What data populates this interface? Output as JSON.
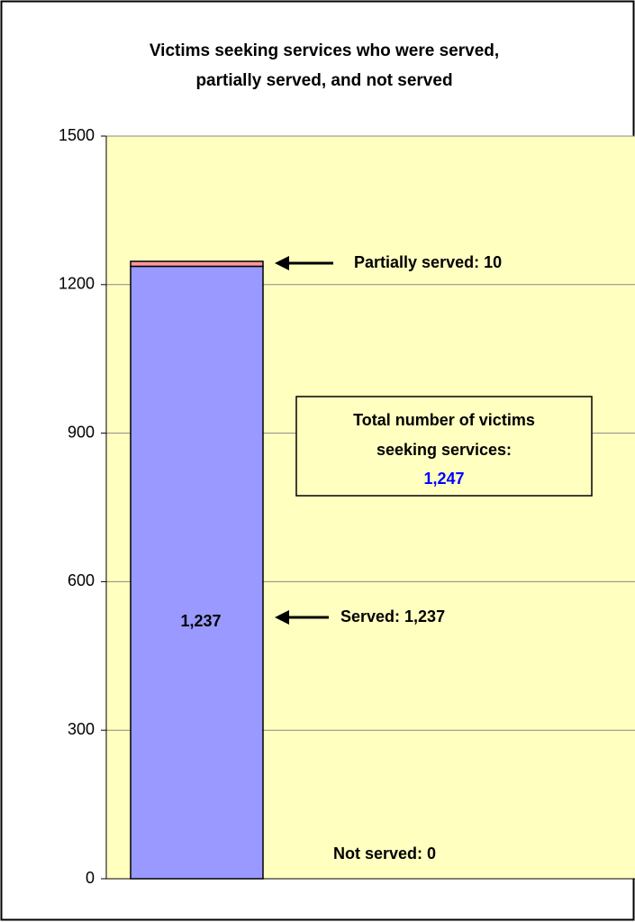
{
  "chart_data": {
    "type": "stacked_bar",
    "title": [
      "Victims seeking services who were served,",
      "partially served, and not served"
    ],
    "categories": [
      null
    ],
    "series": [
      {
        "color": "#9999ff",
        "values": [
          1237
        ],
        "value_labels": [
          "1,237"
        ]
      },
      {
        "color": "#ff9999",
        "values": [
          10
        ]
      },
      {
        "color": "#ffffcc",
        "values": [
          0
        ]
      }
    ],
    "ylim": [
      0,
      1500
    ],
    "yticks": [
      0,
      300,
      600,
      900,
      1200,
      1500
    ],
    "grid": true,
    "plot_color": "#ffffc0",
    "annotations": [
      "Partially served: 10",
      "Served: 1,237",
      "Not served: 0"
    ],
    "total_box": [
      "Total number of victims",
      "seeking services:",
      "1,247"
    ]
  }
}
